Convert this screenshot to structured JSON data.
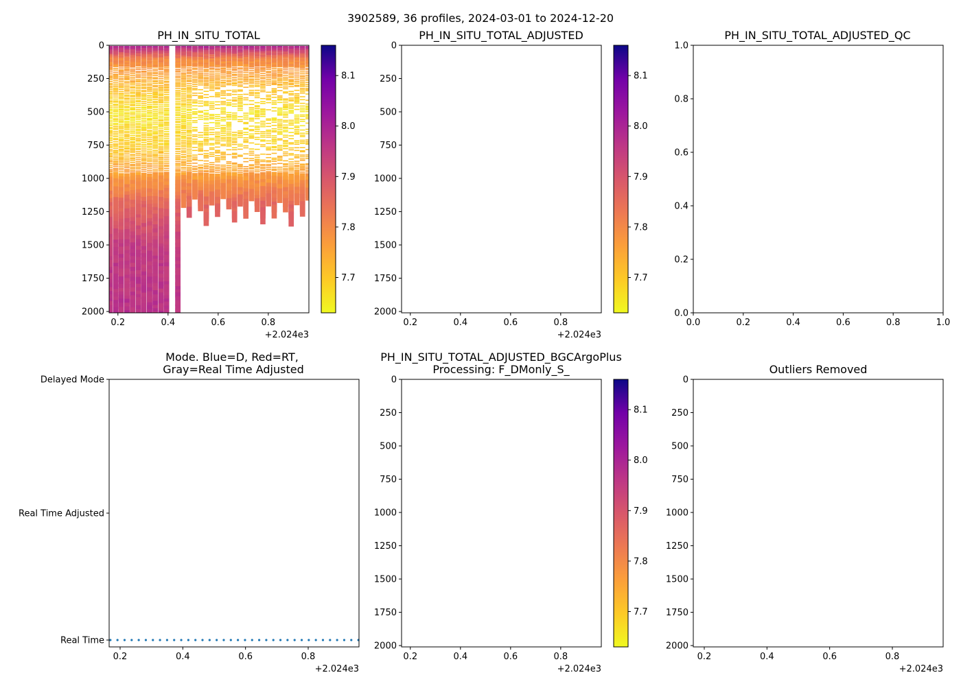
{
  "suptitle": "3902589, 36 profiles, 2024-03-01 to 2024-12-20",
  "x_offset_label": "+2.024e3",
  "colormap": "plasma",
  "chart_data": [
    {
      "id": "p1",
      "type": "heatmap",
      "title": "PH_IN_SITU_TOTAL",
      "xlim": [
        0.165,
        0.962
      ],
      "ylim": [
        2010,
        0
      ],
      "xticks": [
        "0.2",
        "0.4",
        "0.6",
        "0.8"
      ],
      "yticks": [
        "0",
        "250",
        "500",
        "750",
        "1000",
        "1250",
        "1500",
        "1750",
        "2000"
      ],
      "colorbar": {
        "vmin": 7.63,
        "vmax": 8.16,
        "ticks": [
          "7.7",
          "7.8",
          "7.9",
          "8.0",
          "8.1"
        ]
      },
      "profiles_note": "36 profiles; early profiles reach ~2000 dbar, later profiles ~1150-1300 dbar",
      "value_profile": [
        {
          "depth": 0,
          "ph": 7.99
        },
        {
          "depth": 100,
          "ph": 7.8
        },
        {
          "depth": 300,
          "ph": 7.72
        },
        {
          "depth": 500,
          "ph": 7.66
        },
        {
          "depth": 750,
          "ph": 7.69
        },
        {
          "depth": 1000,
          "ph": 7.78
        },
        {
          "depth": 1200,
          "ph": 7.87
        },
        {
          "depth": 1500,
          "ph": 7.95
        },
        {
          "depth": 2000,
          "ph": 7.97
        }
      ]
    },
    {
      "id": "p2",
      "type": "heatmap",
      "title": "PH_IN_SITU_TOTAL_ADJUSTED",
      "xlim": [
        0.165,
        0.962
      ],
      "ylim": [
        2010,
        0
      ],
      "xticks": [
        "0.2",
        "0.4",
        "0.6",
        "0.8"
      ],
      "yticks": [
        "0",
        "250",
        "500",
        "750",
        "1000",
        "1250",
        "1500",
        "1750",
        "2000"
      ],
      "colorbar": {
        "vmin": 7.63,
        "vmax": 8.16,
        "ticks": [
          "7.7",
          "7.8",
          "7.9",
          "8.0",
          "8.1"
        ]
      },
      "data": []
    },
    {
      "id": "p3",
      "type": "scatter",
      "title": "PH_IN_SITU_TOTAL_ADJUSTED_QC",
      "xlim": [
        0,
        1
      ],
      "ylim": [
        0,
        1
      ],
      "xticks": [
        "0.0",
        "0.2",
        "0.4",
        "0.6",
        "0.8",
        "1.0"
      ],
      "yticks": [
        "0.0",
        "0.2",
        "0.4",
        "0.6",
        "0.8",
        "1.0"
      ],
      "data": []
    },
    {
      "id": "p4",
      "type": "scatter",
      "title_line1": "Mode. Blue=D, Red=RT,",
      "title_line2": "Gray=Real Time Adjusted",
      "xlim": [
        0.165,
        0.962
      ],
      "xticks": [
        "0.2",
        "0.4",
        "0.6",
        "0.8"
      ],
      "ycategories": [
        "Real Time",
        "Real Time Adjusted",
        "Delayed Mode"
      ],
      "series": [
        {
          "name": "mode",
          "color": "#1f77b4",
          "category": "Real Time",
          "count": 36
        }
      ]
    },
    {
      "id": "p5",
      "type": "heatmap",
      "title_line1": "PH_IN_SITU_TOTAL_ADJUSTED_BGCArgoPlus",
      "title_line2": "Processing: F_DMonly_S_",
      "xlim": [
        0.165,
        0.962
      ],
      "ylim": [
        2010,
        0
      ],
      "xticks": [
        "0.2",
        "0.4",
        "0.6",
        "0.8"
      ],
      "yticks": [
        "0",
        "250",
        "500",
        "750",
        "1000",
        "1250",
        "1500",
        "1750",
        "2000"
      ],
      "colorbar": {
        "vmin": 7.63,
        "vmax": 8.16,
        "ticks": [
          "7.7",
          "7.8",
          "7.9",
          "8.0",
          "8.1"
        ]
      },
      "data": []
    },
    {
      "id": "p6",
      "type": "scatter",
      "title": "Outliers Removed",
      "xlim": [
        0.165,
        0.962
      ],
      "ylim": [
        2010,
        0
      ],
      "xticks": [
        "0.2",
        "0.4",
        "0.6",
        "0.8"
      ],
      "yticks": [
        "0",
        "250",
        "500",
        "750",
        "1000",
        "1250",
        "1500",
        "1750",
        "2000"
      ],
      "data": []
    }
  ]
}
